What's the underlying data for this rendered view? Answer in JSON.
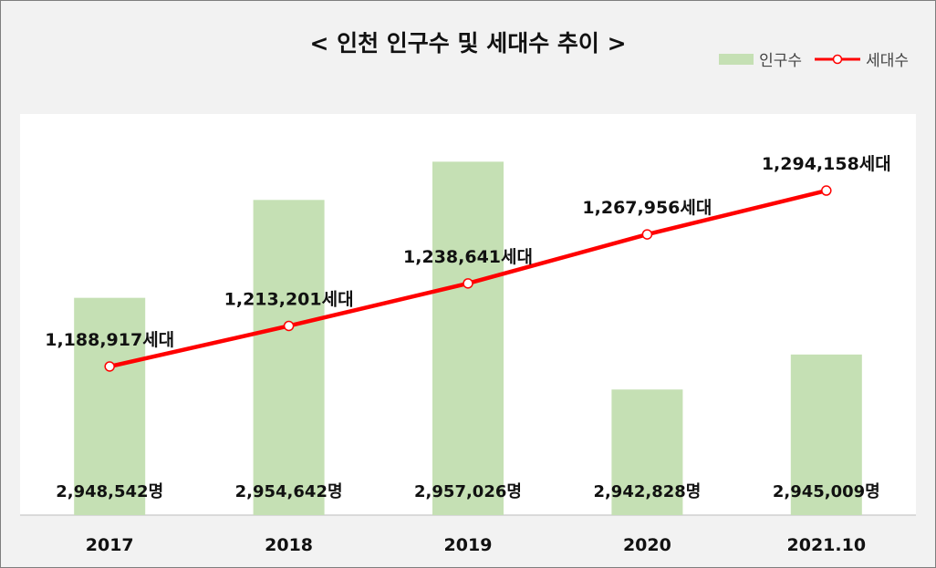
{
  "chart_data": {
    "type": "bar",
    "title": "< 인천  인구수 및 세대수 추이 >",
    "categories": [
      "2017",
      "2018",
      "2019",
      "2020",
      "2021.10"
    ],
    "series": [
      {
        "name": "인구수",
        "type": "bar",
        "values": [
          2948542,
          2954642,
          2957026,
          2942828,
          2945009
        ],
        "labels": [
          "2,948,542명",
          "2,954,642명",
          "2,957,026명",
          "2,942,828명",
          "2,945,009명"
        ],
        "color": "#c5e0b4"
      },
      {
        "name": "세대수",
        "type": "line",
        "values": [
          1188917,
          1213201,
          1238641,
          1267956,
          1294158
        ],
        "labels": [
          "1,188,917세대",
          "1,213,201세대",
          "1,238,641세대",
          "1,267,956세대",
          "1,294,158세대"
        ],
        "color": "#ff0000"
      }
    ],
    "bar_axis_range": [
      2935000,
      2960000
    ],
    "line_axis_range": [
      1100000,
      1340000
    ],
    "legend_position": "top-right",
    "grid": false
  }
}
